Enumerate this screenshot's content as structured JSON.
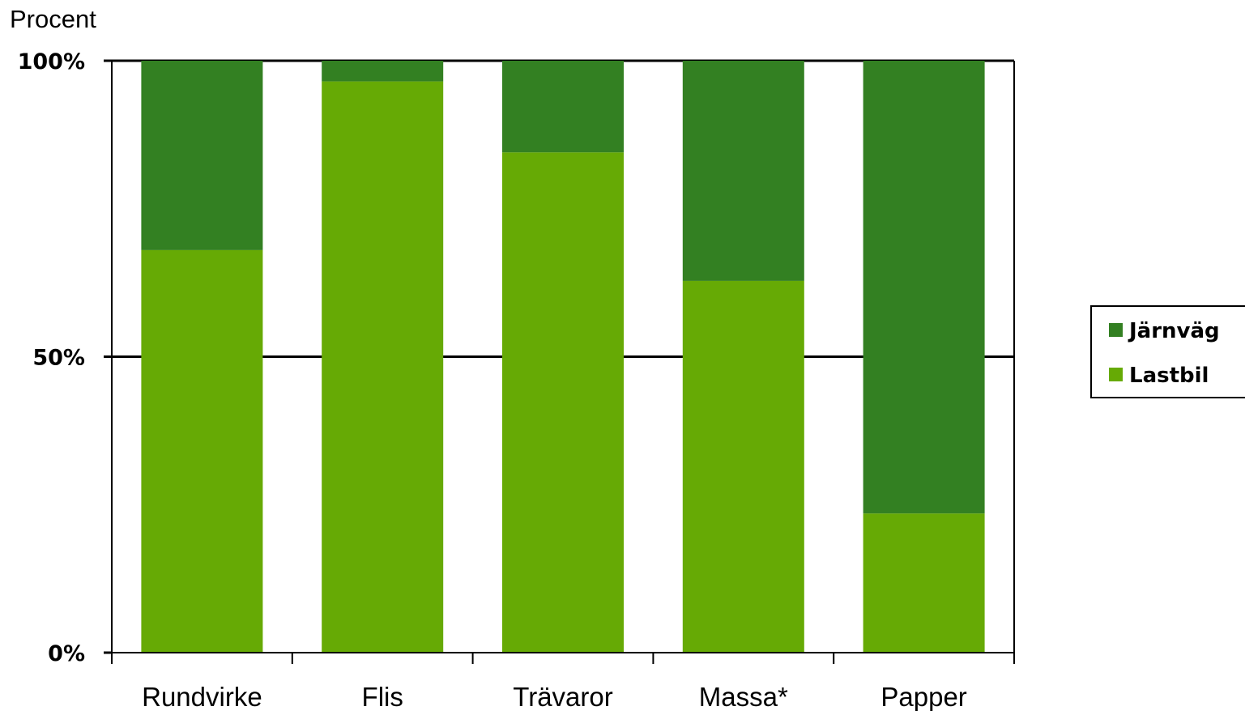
{
  "chart_data": {
    "type": "bar",
    "stacked": true,
    "categories": [
      "Rundvirke",
      "Flis",
      "Trävaror",
      "Massa*",
      "Papper"
    ],
    "series": [
      {
        "name": "Lastbil",
        "values": [
          68,
          96.5,
          84.5,
          62.8,
          23.5
        ],
        "color": "#66AA05"
      },
      {
        "name": "Järnväg",
        "values": [
          32,
          3.5,
          15.5,
          37.2,
          76.5
        ],
        "color": "#338022"
      }
    ],
    "ylabel": "Procent",
    "ylim": [
      0,
      100
    ],
    "yticks": [
      "0%",
      "50%",
      "100%"
    ],
    "ytick_values": [
      0,
      50,
      100
    ],
    "grid": "horizontal at 50% and 100%",
    "legend": {
      "placement": "right",
      "entries": [
        "Järnväg",
        "Lastbil"
      ]
    }
  }
}
